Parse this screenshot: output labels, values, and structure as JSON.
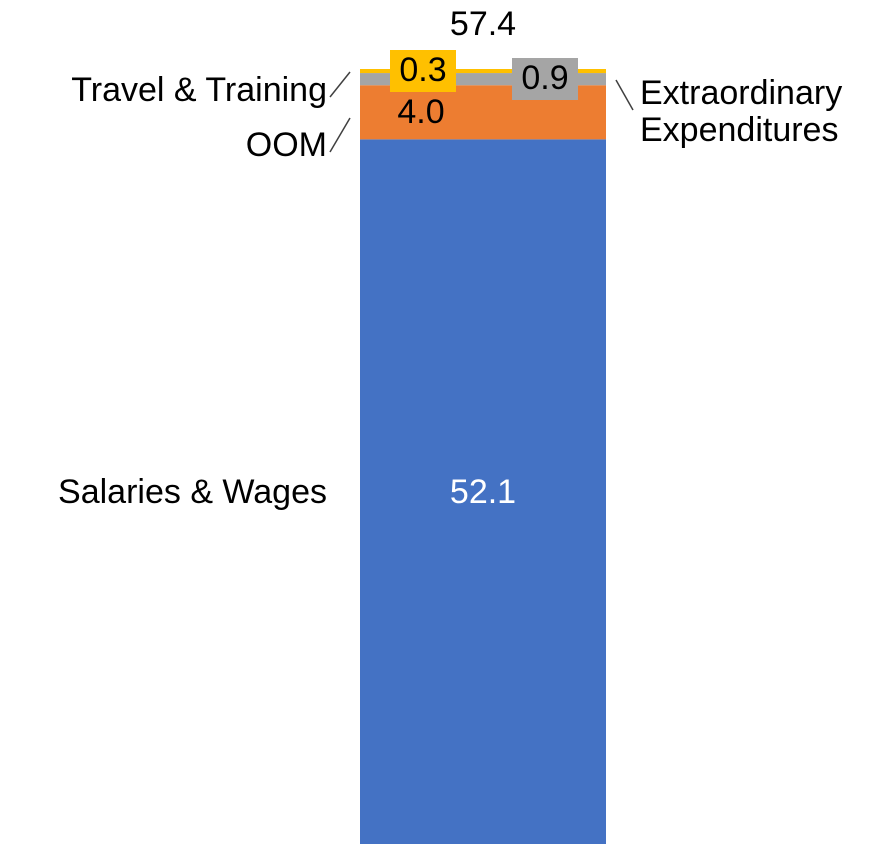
{
  "chart_data": {
    "type": "stacked-bar",
    "total": 57.4,
    "series": [
      {
        "name": "Salaries & Wages",
        "color": "#4472c4",
        "values": [
          52.1
        ],
        "value_labels": [
          "52.1"
        ]
      },
      {
        "name": "OOM",
        "color": "#ed7d31",
        "values": [
          4.0
        ],
        "value_labels": [
          "4.0"
        ]
      },
      {
        "name": "Extraordinary Expenditures",
        "color": "#a5a5a5",
        "values": [
          0.9
        ],
        "value_labels": [
          "0.9"
        ]
      },
      {
        "name": "Travel & Training",
        "color": "#ffc000",
        "values": [
          0.3
        ],
        "value_labels": [
          "0.3"
        ]
      }
    ]
  }
}
